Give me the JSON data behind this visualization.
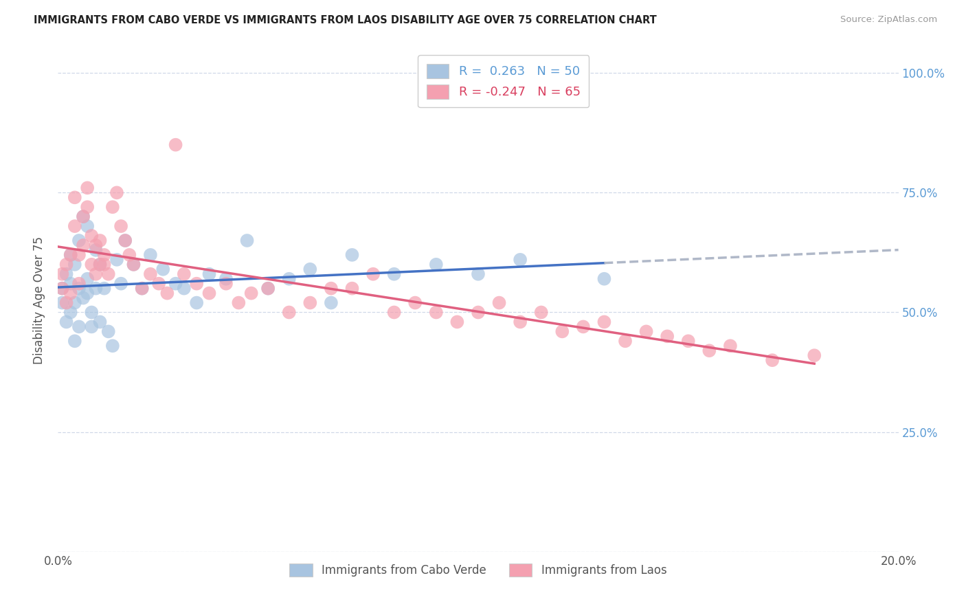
{
  "title": "IMMIGRANTS FROM CABO VERDE VS IMMIGRANTS FROM LAOS DISABILITY AGE OVER 75 CORRELATION CHART",
  "source": "Source: ZipAtlas.com",
  "ylabel": "Disability Age Over 75",
  "xmin": 0.0,
  "xmax": 0.2,
  "ymin": 0.0,
  "ymax": 1.05,
  "yticks": [
    0.0,
    0.25,
    0.5,
    0.75,
    1.0
  ],
  "right_ytick_labels": [
    "",
    "25.0%",
    "50.0%",
    "75.0%",
    "100.0%"
  ],
  "xticks": [
    0.0,
    0.04,
    0.08,
    0.12,
    0.16,
    0.2
  ],
  "xtick_labels": [
    "0.0%",
    "",
    "",
    "",
    "",
    "20.0%"
  ],
  "cabo_verde_R": 0.263,
  "cabo_verde_N": 50,
  "laos_R": -0.247,
  "laos_N": 65,
  "cabo_verde_color": "#a8c4e0",
  "laos_color": "#f4a0b0",
  "cabo_verde_line_color": "#4472c4",
  "laos_line_color": "#e06080",
  "trendline_extend_color": "#b0b8c8",
  "background_color": "#ffffff",
  "grid_color": "#d0d8e8",
  "cabo_verde_x": [
    0.001,
    0.001,
    0.002,
    0.002,
    0.003,
    0.003,
    0.003,
    0.004,
    0.004,
    0.004,
    0.005,
    0.005,
    0.005,
    0.006,
    0.006,
    0.007,
    0.007,
    0.007,
    0.008,
    0.008,
    0.009,
    0.009,
    0.01,
    0.01,
    0.011,
    0.012,
    0.013,
    0.014,
    0.015,
    0.016,
    0.018,
    0.02,
    0.022,
    0.025,
    0.028,
    0.03,
    0.033,
    0.036,
    0.04,
    0.045,
    0.05,
    0.055,
    0.06,
    0.065,
    0.07,
    0.08,
    0.09,
    0.1,
    0.11,
    0.13
  ],
  "cabo_verde_y": [
    0.55,
    0.52,
    0.58,
    0.48,
    0.62,
    0.5,
    0.56,
    0.44,
    0.6,
    0.52,
    0.55,
    0.47,
    0.65,
    0.53,
    0.7,
    0.54,
    0.68,
    0.57,
    0.5,
    0.47,
    0.63,
    0.55,
    0.48,
    0.6,
    0.55,
    0.46,
    0.43,
    0.61,
    0.56,
    0.65,
    0.6,
    0.55,
    0.62,
    0.59,
    0.56,
    0.55,
    0.52,
    0.58,
    0.57,
    0.65,
    0.55,
    0.57,
    0.59,
    0.52,
    0.62,
    0.58,
    0.6,
    0.58,
    0.61,
    0.57
  ],
  "laos_x": [
    0.001,
    0.001,
    0.002,
    0.002,
    0.003,
    0.003,
    0.004,
    0.004,
    0.005,
    0.005,
    0.006,
    0.006,
    0.007,
    0.007,
    0.008,
    0.008,
    0.009,
    0.009,
    0.01,
    0.01,
    0.011,
    0.011,
    0.012,
    0.013,
    0.014,
    0.015,
    0.016,
    0.017,
    0.018,
    0.02,
    0.022,
    0.024,
    0.026,
    0.028,
    0.03,
    0.033,
    0.036,
    0.04,
    0.043,
    0.046,
    0.05,
    0.055,
    0.06,
    0.065,
    0.07,
    0.075,
    0.08,
    0.085,
    0.09,
    0.095,
    0.1,
    0.105,
    0.11,
    0.115,
    0.12,
    0.125,
    0.13,
    0.135,
    0.14,
    0.145,
    0.15,
    0.155,
    0.16,
    0.17,
    0.18
  ],
  "laos_y": [
    0.55,
    0.58,
    0.52,
    0.6,
    0.62,
    0.54,
    0.68,
    0.74,
    0.62,
    0.56,
    0.7,
    0.64,
    0.72,
    0.76,
    0.66,
    0.6,
    0.64,
    0.58,
    0.6,
    0.65,
    0.62,
    0.6,
    0.58,
    0.72,
    0.75,
    0.68,
    0.65,
    0.62,
    0.6,
    0.55,
    0.58,
    0.56,
    0.54,
    0.85,
    0.58,
    0.56,
    0.54,
    0.56,
    0.52,
    0.54,
    0.55,
    0.5,
    0.52,
    0.55,
    0.55,
    0.58,
    0.5,
    0.52,
    0.5,
    0.48,
    0.5,
    0.52,
    0.48,
    0.5,
    0.46,
    0.47,
    0.48,
    0.44,
    0.46,
    0.45,
    0.44,
    0.42,
    0.43,
    0.4,
    0.41
  ]
}
